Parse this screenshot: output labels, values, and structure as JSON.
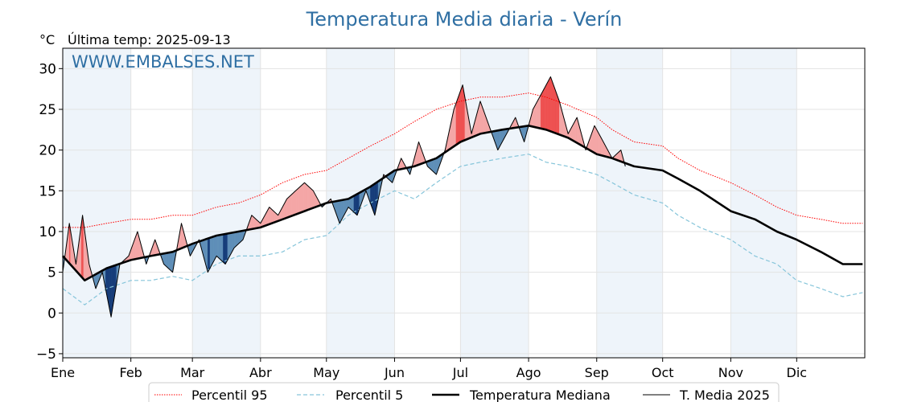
{
  "chart_data": {
    "type": "line",
    "title": "Temperatura Media diaria - Verín",
    "unit": "°C",
    "last_temp_label": "Última temp: 2025-09-13",
    "watermark": "WWW.EMBALSES.NET",
    "ylim": [
      -5.5,
      32.5
    ],
    "yticks": [
      -5,
      0,
      5,
      10,
      15,
      20,
      25,
      30
    ],
    "xlim": [
      0,
      365
    ],
    "months": [
      "Ene",
      "Feb",
      "Mar",
      "Abr",
      "May",
      "Jun",
      "Jul",
      "Ago",
      "Sep",
      "Oct",
      "Nov",
      "Dic"
    ],
    "month_starts": [
      0,
      31,
      59,
      90,
      120,
      151,
      181,
      212,
      243,
      273,
      304,
      334
    ],
    "grid": true,
    "legend_position": "bottom",
    "colors": {
      "p95": "#ff0000",
      "p5": "#86c5da",
      "median": "#000000",
      "current": "#000000",
      "above_fill": "#f4a6a6",
      "above_p95_fill": "#ee5050",
      "below_fill": "#5e8eb8",
      "below_p5_fill": "#163d7a",
      "month_band": "#eef4fa",
      "title": "#2f6fa3"
    },
    "series": [
      {
        "name": "Percentil 95",
        "style": "dotted-red",
        "x": [
          0,
          10,
          20,
          31,
          40,
          50,
          59,
          70,
          80,
          90,
          100,
          110,
          120,
          130,
          140,
          151,
          160,
          170,
          181,
          190,
          200,
          212,
          220,
          230,
          243,
          250,
          260,
          273,
          280,
          290,
          304,
          315,
          325,
          334,
          345,
          355,
          364
        ],
        "y": [
          10.5,
          10.5,
          11,
          11.5,
          11.5,
          12,
          12,
          13,
          13.5,
          14.5,
          16,
          17,
          17.5,
          19,
          20.5,
          22,
          23.5,
          25,
          26,
          26.5,
          26.5,
          27,
          26.5,
          25.5,
          24,
          22.5,
          21,
          20.5,
          19,
          17.5,
          16,
          14.5,
          13,
          12,
          11.5,
          11,
          11
        ]
      },
      {
        "name": "Percentil 5",
        "style": "dashed-lightblue",
        "x": [
          0,
          10,
          20,
          31,
          40,
          50,
          59,
          70,
          80,
          90,
          100,
          110,
          120,
          130,
          140,
          151,
          160,
          170,
          181,
          190,
          200,
          212,
          220,
          230,
          243,
          250,
          260,
          273,
          280,
          290,
          304,
          315,
          325,
          334,
          345,
          355,
          364
        ],
        "y": [
          3,
          1,
          3,
          4,
          4,
          4.5,
          4,
          6,
          7,
          7,
          7.5,
          9,
          9.5,
          12,
          13.5,
          15,
          14,
          16,
          18,
          18.5,
          19,
          19.5,
          18.5,
          18,
          17,
          16,
          14.5,
          13.5,
          12,
          10.5,
          9,
          7,
          6,
          4,
          3,
          2,
          2.5
        ]
      },
      {
        "name": "Temperatura Mediana",
        "style": "thick-black",
        "x": [
          0,
          10,
          20,
          31,
          40,
          50,
          59,
          70,
          80,
          90,
          100,
          110,
          120,
          130,
          140,
          151,
          160,
          170,
          181,
          190,
          200,
          212,
          220,
          230,
          243,
          250,
          260,
          273,
          280,
          290,
          304,
          315,
          325,
          334,
          345,
          355,
          364
        ],
        "y": [
          7,
          4,
          5.5,
          6.5,
          7,
          7.5,
          8.5,
          9.5,
          10,
          10.5,
          11.5,
          12.5,
          13.5,
          14,
          15.5,
          17.5,
          18,
          19,
          21,
          22,
          22.5,
          23,
          22.5,
          21.5,
          19.5,
          19,
          18,
          17.5,
          16.5,
          15,
          12.5,
          11.5,
          10,
          9,
          7.5,
          6,
          6
        ]
      },
      {
        "name": "T. Media 2025",
        "style": "thin-black",
        "x": [
          0,
          3,
          6,
          9,
          12,
          15,
          18,
          22,
          26,
          30,
          34,
          38,
          42,
          46,
          50,
          54,
          58,
          62,
          66,
          70,
          74,
          78,
          82,
          86,
          90,
          94,
          98,
          102,
          106,
          110,
          114,
          118,
          122,
          126,
          130,
          134,
          138,
          142,
          146,
          150,
          154,
          158,
          162,
          166,
          170,
          174,
          178,
          182,
          186,
          190,
          194,
          198,
          202,
          206,
          210,
          214,
          218,
          222,
          226,
          230,
          234,
          238,
          242,
          246,
          250,
          254,
          256
        ],
        "y": [
          5,
          11,
          6,
          12,
          6,
          3,
          5,
          -0.5,
          6,
          7,
          10,
          6,
          9,
          6,
          5,
          11,
          7,
          9,
          5,
          7,
          6,
          8,
          9,
          12,
          11,
          13,
          12,
          14,
          15,
          16,
          15,
          13,
          14,
          11,
          13,
          12,
          15,
          12,
          17,
          16,
          19,
          17,
          21,
          18,
          17,
          20,
          25,
          28,
          22,
          26,
          23,
          20,
          22,
          24,
          21,
          25,
          27,
          29,
          26,
          22,
          24,
          20,
          23,
          21,
          19,
          20,
          18
        ]
      }
    ],
    "legend": [
      "Percentil 95",
      "Percentil 5",
      "Temperatura Mediana",
      "T. Media 2025"
    ]
  }
}
